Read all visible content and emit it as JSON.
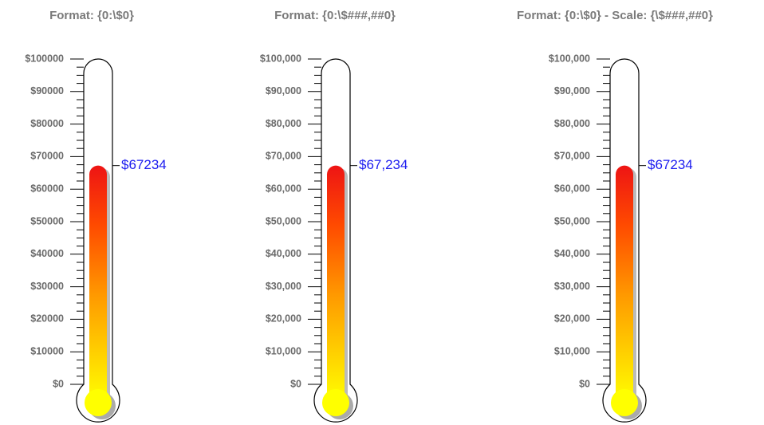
{
  "chart_data": [
    {
      "type": "thermometer",
      "title": "Format: {0:\\$0}",
      "value": 67234,
      "value_label": "$67234",
      "ylim": [
        0,
        100000
      ],
      "minor_ticks": 3,
      "yticks": [
        {
          "value": 0,
          "label": "$0"
        },
        {
          "value": 10000,
          "label": "$10000"
        },
        {
          "value": 20000,
          "label": "$20000"
        },
        {
          "value": 30000,
          "label": "$30000"
        },
        {
          "value": 40000,
          "label": "$40000"
        },
        {
          "value": 50000,
          "label": "$50000"
        },
        {
          "value": 60000,
          "label": "$60000"
        },
        {
          "value": 70000,
          "label": "$70000"
        },
        {
          "value": 80000,
          "label": "$80000"
        },
        {
          "value": 90000,
          "label": "$90000"
        },
        {
          "value": 100000,
          "label": "$100000"
        }
      ]
    },
    {
      "type": "thermometer",
      "title": "Format: {0:\\$###,##0}",
      "value": 67234,
      "value_label": "$67,234",
      "ylim": [
        0,
        100000
      ],
      "minor_ticks": 3,
      "yticks": [
        {
          "value": 0,
          "label": "$0"
        },
        {
          "value": 10000,
          "label": "$10,000"
        },
        {
          "value": 20000,
          "label": "$20,000"
        },
        {
          "value": 30000,
          "label": "$30,000"
        },
        {
          "value": 40000,
          "label": "$40,000"
        },
        {
          "value": 50000,
          "label": "$50,000"
        },
        {
          "value": 60000,
          "label": "$60,000"
        },
        {
          "value": 70000,
          "label": "$70,000"
        },
        {
          "value": 80000,
          "label": "$80,000"
        },
        {
          "value": 90000,
          "label": "$90,000"
        },
        {
          "value": 100000,
          "label": "$100,000"
        }
      ]
    },
    {
      "type": "thermometer",
      "title": "Format: {0:\\$0} - Scale: {\\$###,##0}",
      "value": 67234,
      "value_label": "$67234",
      "ylim": [
        0,
        100000
      ],
      "minor_ticks": 3,
      "yticks": [
        {
          "value": 0,
          "label": "$0"
        },
        {
          "value": 10000,
          "label": "$10,000"
        },
        {
          "value": 20000,
          "label": "$20,000"
        },
        {
          "value": 30000,
          "label": "$30,000"
        },
        {
          "value": 40000,
          "label": "$40,000"
        },
        {
          "value": 50000,
          "label": "$50,000"
        },
        {
          "value": 60000,
          "label": "$60,000"
        },
        {
          "value": 70000,
          "label": "$70,000"
        },
        {
          "value": 80000,
          "label": "$80,000"
        },
        {
          "value": 90000,
          "label": "$90,000"
        },
        {
          "value": 100000,
          "label": "$100,000"
        }
      ]
    }
  ]
}
